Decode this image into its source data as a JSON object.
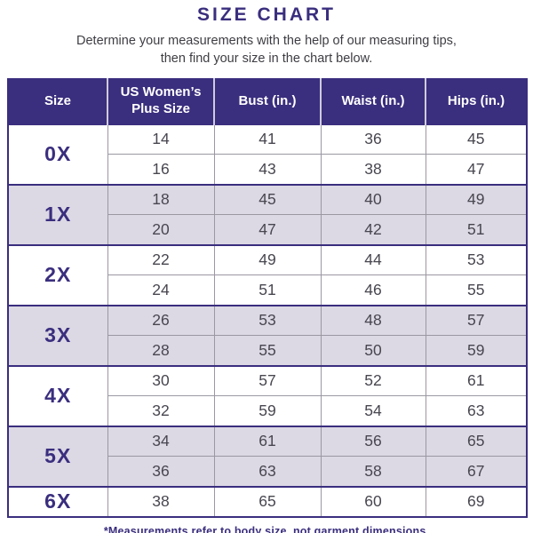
{
  "page": {
    "title": "SIZE CHART",
    "subtitle_line1": "Determine your measurements with the help of our measuring tips,",
    "subtitle_line2": "then find your size in the chart below.",
    "footnote": "*Measurements refer to body size, not garment dimensions."
  },
  "colors": {
    "primary_purple": "#3a2e7e",
    "row_alt_lavender": "#dcd8e4",
    "cell_text": "#48464f",
    "grid_line": "#9b98a2",
    "header_text": "#ffffff"
  },
  "chart_data": {
    "type": "table",
    "title": "SIZE CHART",
    "columns": [
      "Size",
      "US Women’s Plus Size",
      "Bust (in.)",
      "Waist (in.)",
      "Hips (in.)"
    ],
    "groups": [
      {
        "size": "0X",
        "rows": [
          [
            14,
            41,
            36,
            45
          ],
          [
            16,
            43,
            38,
            47
          ]
        ]
      },
      {
        "size": "1X",
        "rows": [
          [
            18,
            45,
            40,
            49
          ],
          [
            20,
            47,
            42,
            51
          ]
        ]
      },
      {
        "size": "2X",
        "rows": [
          [
            22,
            49,
            44,
            53
          ],
          [
            24,
            51,
            46,
            55
          ]
        ]
      },
      {
        "size": "3X",
        "rows": [
          [
            26,
            53,
            48,
            57
          ],
          [
            28,
            55,
            50,
            59
          ]
        ]
      },
      {
        "size": "4X",
        "rows": [
          [
            30,
            57,
            52,
            61
          ],
          [
            32,
            59,
            54,
            63
          ]
        ]
      },
      {
        "size": "5X",
        "rows": [
          [
            34,
            61,
            56,
            65
          ],
          [
            36,
            63,
            58,
            67
          ]
        ]
      },
      {
        "size": "6X",
        "rows": [
          [
            38,
            65,
            60,
            69
          ]
        ]
      }
    ],
    "footnote": "*Measurements refer to body size, not garment dimensions."
  }
}
